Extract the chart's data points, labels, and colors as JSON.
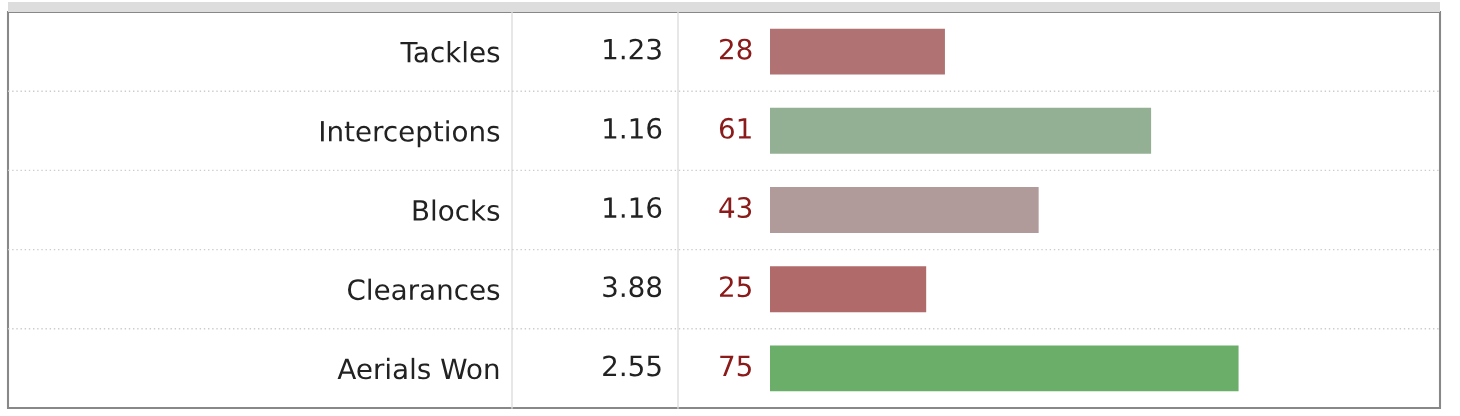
{
  "chart_data": {
    "type": "bar",
    "orientation": "horizontal",
    "tick_labels": "y",
    "data_labels": true,
    "categories": [
      "Tackles",
      "Interceptions",
      "Blocks",
      "Clearances",
      "Aerials Won"
    ],
    "values": [
      28,
      61,
      43,
      25,
      75
    ],
    "colors": [
      "#b07272",
      "#94b094",
      "#b09a9a",
      "#b06a6a",
      "#6aae6a"
    ],
    "annotations": [
      "1.23",
      "1.16",
      "1.16",
      "3.88",
      "2.55"
    ]
  }
}
